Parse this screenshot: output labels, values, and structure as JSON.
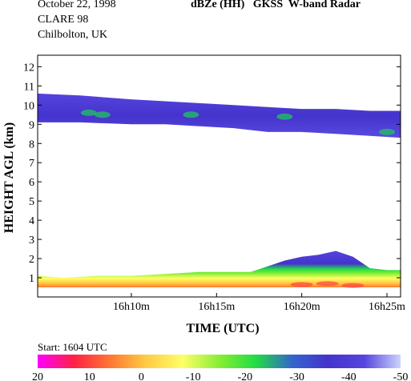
{
  "header": {
    "date": "October 22, 1998",
    "campaign": "CLARE 98",
    "location": "Chilbolton, UK",
    "title": "dBZe (HH)   GKSS  W-band Radar"
  },
  "chart_data": {
    "type": "heatmap",
    "title": "dBZe (HH)   GKSS  W-band Radar",
    "xlabel": "TIME (UTC)",
    "ylabel": "HEIGHT AGL (km)",
    "xlim_min": [
      4.5,
      25.8
    ],
    "ylim_km": [
      0,
      12.6
    ],
    "x_ticks": [
      {
        "value": 10,
        "label": "16h10m"
      },
      {
        "value": 15,
        "label": "16h15m"
      },
      {
        "value": 20,
        "label": "16h20m"
      },
      {
        "value": 25,
        "label": "16h25m"
      }
    ],
    "y_ticks": [
      1,
      2,
      3,
      4,
      5,
      6,
      7,
      8,
      9,
      10,
      11,
      12
    ],
    "start_label": "Start: 1604 UTC",
    "colorbar": {
      "ticks": [
        "20",
        "10",
        "0",
        "-10",
        "-20",
        "-30",
        "-40",
        "-50"
      ],
      "colors": [
        "#ff00ff",
        "#ff2244",
        "#ff7733",
        "#ffcc44",
        "#ffff66",
        "#88ee33",
        "#22dd44",
        "#3366cc",
        "#4433cc",
        "#5544dd",
        "#ccd4ff"
      ]
    },
    "echo_layers": [
      {
        "name": "upper ice cloud",
        "minutes": [
          4.5,
          7,
          10,
          12,
          14,
          16,
          18,
          20,
          22,
          24,
          25.8
        ],
        "top_km": [
          10.6,
          10.5,
          10.3,
          10.2,
          10.1,
          10.0,
          9.9,
          9.8,
          9.8,
          9.7,
          9.7
        ],
        "base_km": [
          9.1,
          9.1,
          9.0,
          9.0,
          8.9,
          8.8,
          8.6,
          8.6,
          8.5,
          8.4,
          8.3
        ],
        "typical_dbz": -40
      },
      {
        "name": "low cloud",
        "minutes": [
          4.5,
          6,
          8,
          10,
          12,
          14,
          16,
          17,
          18,
          19,
          20,
          21,
          22,
          23,
          24,
          25,
          25.8
        ],
        "top_km": [
          1.1,
          1.0,
          1.1,
          1.1,
          1.2,
          1.3,
          1.3,
          1.3,
          1.6,
          1.9,
          2.1,
          2.2,
          2.4,
          2.1,
          1.5,
          1.4,
          1.4
        ],
        "base_km": [
          0.5,
          0.5,
          0.5,
          0.5,
          0.5,
          0.5,
          0.5,
          0.5,
          0.5,
          0.5,
          0.5,
          0.5,
          0.5,
          0.5,
          0.5,
          0.5,
          0.5
        ],
        "typical_dbz": [
          -30,
          5
        ]
      }
    ]
  }
}
